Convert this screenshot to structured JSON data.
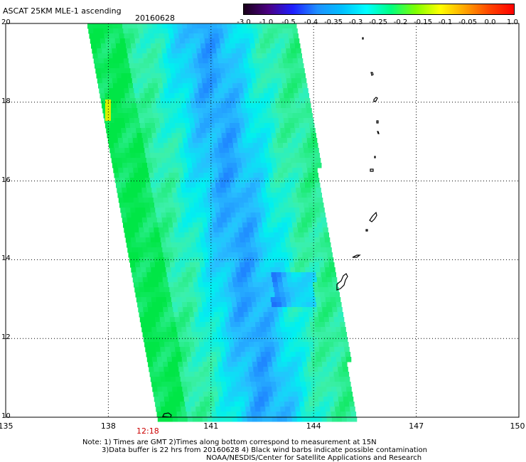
{
  "header": {
    "title": "ASCAT 25KM MLE-1 ascending",
    "date": "20160628"
  },
  "colorbar": {
    "labels": [
      "-3.0",
      "-1.0",
      "-0.5",
      "-0.4",
      "-0.35",
      "-0.3",
      "-0.25",
      "-0.2",
      "-0.15",
      "-0.1",
      "-0.05",
      "0.0",
      "1.0"
    ],
    "colors": [
      "#1a001a",
      "#4b0082",
      "#1e1eff",
      "#1e90ff",
      "#00bfff",
      "#00ffff",
      "#00ff7f",
      "#7fff00",
      "#ffff00",
      "#ffa500",
      "#ff4500",
      "#ff0000"
    ]
  },
  "map": {
    "lat_labels": [
      "20",
      "18",
      "16",
      "14",
      "12",
      "10"
    ],
    "lon_labels": [
      "135",
      "138",
      "141",
      "144",
      "147",
      "150"
    ],
    "time_label": "12:18"
  },
  "notes": {
    "line1": "Note: 1) Times are GMT 2)Times along bottom correspond to measurement at 15N",
    "line2": "3)Data buffer is 22 hrs from 20160628 4) Black wind barbs indicate possible contamination",
    "line3": "NOAA/NESDIS/Center for Satellite Applications and Research"
  }
}
